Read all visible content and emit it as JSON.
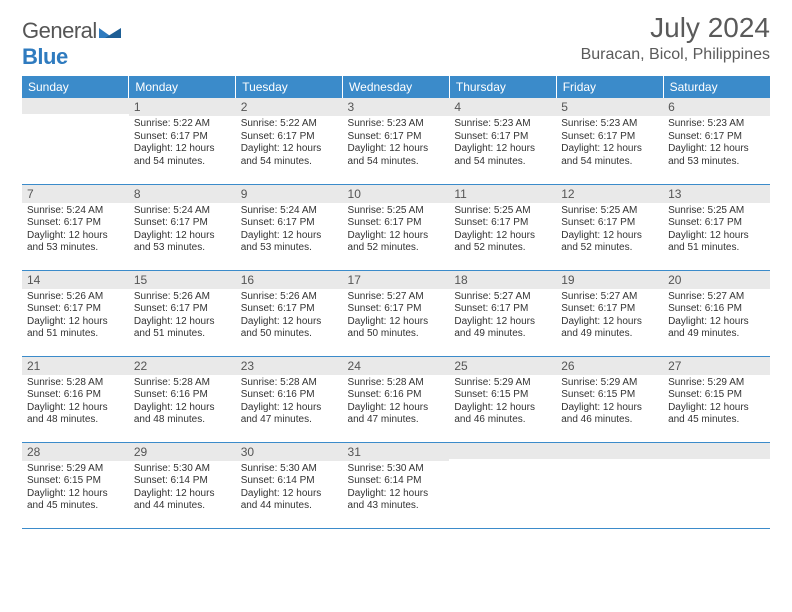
{
  "logo": {
    "general": "General",
    "blue": "Blue"
  },
  "title": "July 2024",
  "location": "Buracan, Bicol, Philippines",
  "colors": {
    "header_bg": "#3b8bca",
    "header_text": "#ffffff",
    "daynum_bg": "#e9e9e9",
    "rule": "#3b8bca"
  },
  "weekdays": [
    "Sunday",
    "Monday",
    "Tuesday",
    "Wednesday",
    "Thursday",
    "Friday",
    "Saturday"
  ],
  "weeks": [
    [
      {
        "n": "",
        "sr": "",
        "ss": "",
        "dl": ""
      },
      {
        "n": "1",
        "sr": "Sunrise: 5:22 AM",
        "ss": "Sunset: 6:17 PM",
        "dl": "Daylight: 12 hours and 54 minutes."
      },
      {
        "n": "2",
        "sr": "Sunrise: 5:22 AM",
        "ss": "Sunset: 6:17 PM",
        "dl": "Daylight: 12 hours and 54 minutes."
      },
      {
        "n": "3",
        "sr": "Sunrise: 5:23 AM",
        "ss": "Sunset: 6:17 PM",
        "dl": "Daylight: 12 hours and 54 minutes."
      },
      {
        "n": "4",
        "sr": "Sunrise: 5:23 AM",
        "ss": "Sunset: 6:17 PM",
        "dl": "Daylight: 12 hours and 54 minutes."
      },
      {
        "n": "5",
        "sr": "Sunrise: 5:23 AM",
        "ss": "Sunset: 6:17 PM",
        "dl": "Daylight: 12 hours and 54 minutes."
      },
      {
        "n": "6",
        "sr": "Sunrise: 5:23 AM",
        "ss": "Sunset: 6:17 PM",
        "dl": "Daylight: 12 hours and 53 minutes."
      }
    ],
    [
      {
        "n": "7",
        "sr": "Sunrise: 5:24 AM",
        "ss": "Sunset: 6:17 PM",
        "dl": "Daylight: 12 hours and 53 minutes."
      },
      {
        "n": "8",
        "sr": "Sunrise: 5:24 AM",
        "ss": "Sunset: 6:17 PM",
        "dl": "Daylight: 12 hours and 53 minutes."
      },
      {
        "n": "9",
        "sr": "Sunrise: 5:24 AM",
        "ss": "Sunset: 6:17 PM",
        "dl": "Daylight: 12 hours and 53 minutes."
      },
      {
        "n": "10",
        "sr": "Sunrise: 5:25 AM",
        "ss": "Sunset: 6:17 PM",
        "dl": "Daylight: 12 hours and 52 minutes."
      },
      {
        "n": "11",
        "sr": "Sunrise: 5:25 AM",
        "ss": "Sunset: 6:17 PM",
        "dl": "Daylight: 12 hours and 52 minutes."
      },
      {
        "n": "12",
        "sr": "Sunrise: 5:25 AM",
        "ss": "Sunset: 6:17 PM",
        "dl": "Daylight: 12 hours and 52 minutes."
      },
      {
        "n": "13",
        "sr": "Sunrise: 5:25 AM",
        "ss": "Sunset: 6:17 PM",
        "dl": "Daylight: 12 hours and 51 minutes."
      }
    ],
    [
      {
        "n": "14",
        "sr": "Sunrise: 5:26 AM",
        "ss": "Sunset: 6:17 PM",
        "dl": "Daylight: 12 hours and 51 minutes."
      },
      {
        "n": "15",
        "sr": "Sunrise: 5:26 AM",
        "ss": "Sunset: 6:17 PM",
        "dl": "Daylight: 12 hours and 51 minutes."
      },
      {
        "n": "16",
        "sr": "Sunrise: 5:26 AM",
        "ss": "Sunset: 6:17 PM",
        "dl": "Daylight: 12 hours and 50 minutes."
      },
      {
        "n": "17",
        "sr": "Sunrise: 5:27 AM",
        "ss": "Sunset: 6:17 PM",
        "dl": "Daylight: 12 hours and 50 minutes."
      },
      {
        "n": "18",
        "sr": "Sunrise: 5:27 AM",
        "ss": "Sunset: 6:17 PM",
        "dl": "Daylight: 12 hours and 49 minutes."
      },
      {
        "n": "19",
        "sr": "Sunrise: 5:27 AM",
        "ss": "Sunset: 6:17 PM",
        "dl": "Daylight: 12 hours and 49 minutes."
      },
      {
        "n": "20",
        "sr": "Sunrise: 5:27 AM",
        "ss": "Sunset: 6:16 PM",
        "dl": "Daylight: 12 hours and 49 minutes."
      }
    ],
    [
      {
        "n": "21",
        "sr": "Sunrise: 5:28 AM",
        "ss": "Sunset: 6:16 PM",
        "dl": "Daylight: 12 hours and 48 minutes."
      },
      {
        "n": "22",
        "sr": "Sunrise: 5:28 AM",
        "ss": "Sunset: 6:16 PM",
        "dl": "Daylight: 12 hours and 48 minutes."
      },
      {
        "n": "23",
        "sr": "Sunrise: 5:28 AM",
        "ss": "Sunset: 6:16 PM",
        "dl": "Daylight: 12 hours and 47 minutes."
      },
      {
        "n": "24",
        "sr": "Sunrise: 5:28 AM",
        "ss": "Sunset: 6:16 PM",
        "dl": "Daylight: 12 hours and 47 minutes."
      },
      {
        "n": "25",
        "sr": "Sunrise: 5:29 AM",
        "ss": "Sunset: 6:15 PM",
        "dl": "Daylight: 12 hours and 46 minutes."
      },
      {
        "n": "26",
        "sr": "Sunrise: 5:29 AM",
        "ss": "Sunset: 6:15 PM",
        "dl": "Daylight: 12 hours and 46 minutes."
      },
      {
        "n": "27",
        "sr": "Sunrise: 5:29 AM",
        "ss": "Sunset: 6:15 PM",
        "dl": "Daylight: 12 hours and 45 minutes."
      }
    ],
    [
      {
        "n": "28",
        "sr": "Sunrise: 5:29 AM",
        "ss": "Sunset: 6:15 PM",
        "dl": "Daylight: 12 hours and 45 minutes."
      },
      {
        "n": "29",
        "sr": "Sunrise: 5:30 AM",
        "ss": "Sunset: 6:14 PM",
        "dl": "Daylight: 12 hours and 44 minutes."
      },
      {
        "n": "30",
        "sr": "Sunrise: 5:30 AM",
        "ss": "Sunset: 6:14 PM",
        "dl": "Daylight: 12 hours and 44 minutes."
      },
      {
        "n": "31",
        "sr": "Sunrise: 5:30 AM",
        "ss": "Sunset: 6:14 PM",
        "dl": "Daylight: 12 hours and 43 minutes."
      },
      {
        "n": "",
        "sr": "",
        "ss": "",
        "dl": ""
      },
      {
        "n": "",
        "sr": "",
        "ss": "",
        "dl": ""
      },
      {
        "n": "",
        "sr": "",
        "ss": "",
        "dl": ""
      }
    ]
  ]
}
